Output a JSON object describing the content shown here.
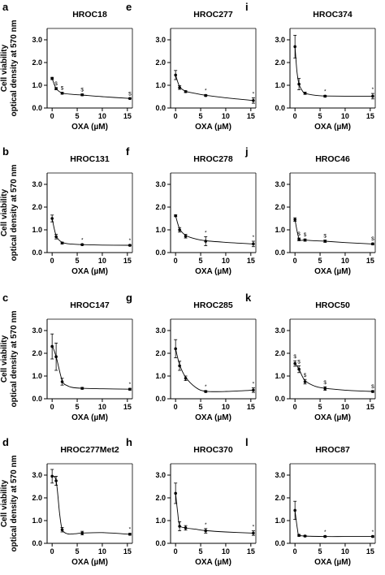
{
  "ylabel_lines": [
    "Cell viability",
    "optical density at 570 nm"
  ],
  "chart_data": [
    {
      "type": "line",
      "letter": "a",
      "title": "HROC18",
      "xlabel": "OXA (µM)",
      "ylabel": "Cell viability optical density at 570 nm",
      "xlim": [
        -1,
        16
      ],
      "ylim": [
        0,
        3.5
      ],
      "xticks": [
        0,
        5,
        10,
        15
      ],
      "yticks": [
        0,
        1,
        2,
        3
      ],
      "yticklabels": [
        "0.0",
        "1.0",
        "2.0",
        "3.0"
      ],
      "points": [
        {
          "x": 0,
          "y": 1.3,
          "err": 0.05,
          "ann": ""
        },
        {
          "x": 0.8,
          "y": 0.85,
          "err": 0.05,
          "ann": "$"
        },
        {
          "x": 2,
          "y": 0.65,
          "err": 0.04,
          "ann": "$"
        },
        {
          "x": 6,
          "y": 0.58,
          "err": 0.04,
          "ann": "$"
        },
        {
          "x": 15.5,
          "y": 0.42,
          "err": 0.03,
          "ann": "$"
        }
      ],
      "curve": [
        [
          0,
          1.3
        ],
        [
          0.8,
          0.86
        ],
        [
          2,
          0.66
        ],
        [
          4,
          0.6
        ],
        [
          6,
          0.57
        ],
        [
          10,
          0.5
        ],
        [
          15.5,
          0.42
        ]
      ]
    },
    {
      "type": "line",
      "letter": "e",
      "title": "HROC277",
      "xlabel": "OXA (µM)",
      "ylabel": "",
      "xlim": [
        -1,
        16
      ],
      "ylim": [
        0,
        3.5
      ],
      "xticks": [
        0,
        5,
        10,
        15
      ],
      "yticks": [
        0,
        1,
        2,
        3
      ],
      "yticklabels": [
        "0.0",
        "1.0",
        "2.0",
        "3.0"
      ],
      "points": [
        {
          "x": 0,
          "y": 1.45,
          "err": 0.2,
          "ann": ""
        },
        {
          "x": 0.8,
          "y": 0.9,
          "err": 0.08,
          "ann": ""
        },
        {
          "x": 2,
          "y": 0.72,
          "err": 0.04,
          "ann": ""
        },
        {
          "x": 6,
          "y": 0.55,
          "err": 0.04,
          "ann": "*"
        },
        {
          "x": 15.5,
          "y": 0.33,
          "err": 0.12,
          "ann": "*"
        }
      ],
      "curve": [
        [
          0,
          1.45
        ],
        [
          0.8,
          0.95
        ],
        [
          2,
          0.74
        ],
        [
          4,
          0.64
        ],
        [
          6,
          0.56
        ],
        [
          10,
          0.45
        ],
        [
          15.5,
          0.33
        ]
      ]
    },
    {
      "type": "line",
      "letter": "i",
      "title": "HROC374",
      "xlabel": "OXA (µM)",
      "ylabel": "",
      "xlim": [
        -1,
        16
      ],
      "ylim": [
        0,
        3.5
      ],
      "xticks": [
        0,
        5,
        10,
        15
      ],
      "yticks": [
        0,
        1,
        2,
        3
      ],
      "yticklabels": [
        "0.0",
        "1.0",
        "2.0",
        "3.0"
      ],
      "points": [
        {
          "x": 0,
          "y": 2.7,
          "err": 0.5,
          "ann": ""
        },
        {
          "x": 0.8,
          "y": 1.05,
          "err": 0.25,
          "ann": ""
        },
        {
          "x": 2,
          "y": 0.65,
          "err": 0.05,
          "ann": ""
        },
        {
          "x": 6,
          "y": 0.52,
          "err": 0.04,
          "ann": "*"
        },
        {
          "x": 15.5,
          "y": 0.52,
          "err": 0.12,
          "ann": "*"
        }
      ],
      "curve": [
        [
          0,
          2.7
        ],
        [
          0.4,
          1.6
        ],
        [
          0.8,
          1.05
        ],
        [
          1.5,
          0.75
        ],
        [
          2,
          0.65
        ],
        [
          4,
          0.56
        ],
        [
          6,
          0.53
        ],
        [
          10,
          0.52
        ],
        [
          15.5,
          0.52
        ]
      ]
    },
    {
      "type": "line",
      "letter": "b",
      "title": "HROC131",
      "xlabel": "OXA (µM)",
      "ylabel": "Cell viability optical density at 570 nm",
      "xlim": [
        -1,
        16
      ],
      "ylim": [
        0,
        3.5
      ],
      "xticks": [
        0,
        5,
        10,
        15
      ],
      "yticks": [
        0,
        1,
        2,
        3
      ],
      "yticklabels": [
        "0.0",
        "1.0",
        "2.0",
        "3.0"
      ],
      "points": [
        {
          "x": 0,
          "y": 1.5,
          "err": 0.15,
          "ann": ""
        },
        {
          "x": 0.8,
          "y": 0.7,
          "err": 0.1,
          "ann": ""
        },
        {
          "x": 2,
          "y": 0.42,
          "err": 0.04,
          "ann": ""
        },
        {
          "x": 6,
          "y": 0.35,
          "err": 0.03,
          "ann": "*"
        },
        {
          "x": 15.5,
          "y": 0.32,
          "err": 0.03,
          "ann": "*"
        }
      ],
      "curve": [
        [
          0,
          1.5
        ],
        [
          0.8,
          0.75
        ],
        [
          2,
          0.45
        ],
        [
          4,
          0.37
        ],
        [
          6,
          0.35
        ],
        [
          10,
          0.33
        ],
        [
          15.5,
          0.32
        ]
      ]
    },
    {
      "type": "line",
      "letter": "f",
      "title": "HROC278",
      "xlabel": "OXA (µM)",
      "ylabel": "",
      "xlim": [
        -1,
        16
      ],
      "ylim": [
        0,
        3.5
      ],
      "xticks": [
        0,
        5,
        10,
        15
      ],
      "yticks": [
        0,
        1,
        2,
        3
      ],
      "yticklabels": [
        "0.0",
        "1.0",
        "2.0",
        "3.0"
      ],
      "points": [
        {
          "x": 0,
          "y": 1.62,
          "err": 0.04,
          "ann": ""
        },
        {
          "x": 0.8,
          "y": 1.0,
          "err": 0.1,
          "ann": ""
        },
        {
          "x": 2,
          "y": 0.72,
          "err": 0.08,
          "ann": ""
        },
        {
          "x": 6,
          "y": 0.5,
          "err": 0.2,
          "ann": "*"
        },
        {
          "x": 15.5,
          "y": 0.38,
          "err": 0.12,
          "ann": "*"
        }
      ],
      "curve": [
        [
          0,
          1.62
        ],
        [
          0.8,
          1.05
        ],
        [
          2,
          0.76
        ],
        [
          4,
          0.6
        ],
        [
          6,
          0.52
        ],
        [
          10,
          0.45
        ],
        [
          15.5,
          0.38
        ]
      ]
    },
    {
      "type": "line",
      "letter": "j",
      "title": "HROC46",
      "xlabel": "OXA (µM)",
      "ylabel": "",
      "xlim": [
        -1,
        16
      ],
      "ylim": [
        0,
        3.5
      ],
      "xticks": [
        0,
        5,
        10,
        15
      ],
      "yticks": [
        0,
        1,
        2,
        3
      ],
      "yticklabels": [
        "0.0",
        "1.0",
        "2.0",
        "3.0"
      ],
      "points": [
        {
          "x": 0,
          "y": 1.45,
          "err": 0.08,
          "ann": ""
        },
        {
          "x": 0.8,
          "y": 0.58,
          "err": 0.06,
          "ann": "$"
        },
        {
          "x": 2,
          "y": 0.55,
          "err": 0.05,
          "ann": "$"
        },
        {
          "x": 6,
          "y": 0.5,
          "err": 0.05,
          "ann": "$"
        },
        {
          "x": 15.5,
          "y": 0.38,
          "err": 0.04,
          "ann": "$"
        }
      ],
      "curve": [
        [
          0,
          1.45
        ],
        [
          0.8,
          0.62
        ],
        [
          2,
          0.55
        ],
        [
          4,
          0.52
        ],
        [
          6,
          0.5
        ],
        [
          10,
          0.44
        ],
        [
          15.5,
          0.38
        ]
      ]
    },
    {
      "type": "line",
      "letter": "c",
      "title": "HROC147",
      "xlabel": "OXA (µM)",
      "ylabel": "Cell viability optical density at 570 nm",
      "xlim": [
        -1,
        16
      ],
      "ylim": [
        0,
        3.5
      ],
      "xticks": [
        0,
        5,
        10,
        15
      ],
      "yticks": [
        0,
        1,
        2,
        3
      ],
      "yticklabels": [
        "0.0",
        "1.0",
        "2.0",
        "3.0"
      ],
      "points": [
        {
          "x": 0,
          "y": 2.3,
          "err": 0.55,
          "ann": ""
        },
        {
          "x": 0.8,
          "y": 1.85,
          "err": 0.6,
          "ann": ""
        },
        {
          "x": 2,
          "y": 0.75,
          "err": 0.15,
          "ann": ""
        },
        {
          "x": 6,
          "y": 0.46,
          "err": 0.04,
          "ann": ""
        },
        {
          "x": 15.5,
          "y": 0.42,
          "err": 0.04,
          "ann": "*"
        }
      ],
      "curve": [
        [
          0,
          2.35
        ],
        [
          0.8,
          1.85
        ],
        [
          2,
          0.8
        ],
        [
          3,
          0.58
        ],
        [
          4,
          0.5
        ],
        [
          6,
          0.46
        ],
        [
          10,
          0.44
        ],
        [
          15.5,
          0.42
        ]
      ]
    },
    {
      "type": "line",
      "letter": "g",
      "title": "HROC285",
      "xlabel": "OXA (µM)",
      "ylabel": "",
      "xlim": [
        -1,
        16
      ],
      "ylim": [
        0,
        3.5
      ],
      "xticks": [
        0,
        5,
        10,
        15
      ],
      "yticks": [
        0,
        1,
        2,
        3
      ],
      "yticklabels": [
        "0.0",
        "1.0",
        "2.0",
        "3.0"
      ],
      "points": [
        {
          "x": 0,
          "y": 2.2,
          "err": 0.4,
          "ann": ""
        },
        {
          "x": 0.8,
          "y": 1.45,
          "err": 0.2,
          "ann": ""
        },
        {
          "x": 2,
          "y": 0.9,
          "err": 0.1,
          "ann": ""
        },
        {
          "x": 6,
          "y": 0.32,
          "err": 0.04,
          "ann": "*"
        },
        {
          "x": 15.5,
          "y": 0.38,
          "err": 0.1,
          "ann": "*"
        }
      ],
      "curve": [
        [
          0,
          2.2
        ],
        [
          0.8,
          1.5
        ],
        [
          2,
          0.95
        ],
        [
          4,
          0.5
        ],
        [
          6,
          0.33
        ],
        [
          10,
          0.32
        ],
        [
          15.5,
          0.38
        ]
      ]
    },
    {
      "type": "line",
      "letter": "k",
      "title": "HROC50",
      "xlabel": "OXA (µM)",
      "ylabel": "",
      "xlim": [
        -1,
        16
      ],
      "ylim": [
        0,
        3.5
      ],
      "xticks": [
        0,
        5,
        10,
        15
      ],
      "yticks": [
        0,
        1,
        2,
        3
      ],
      "yticklabels": [
        "0.0",
        "1.0",
        "2.0",
        "3.0"
      ],
      "points": [
        {
          "x": 0,
          "y": 1.55,
          "err": 0.12,
          "ann": "$"
        },
        {
          "x": 0.8,
          "y": 1.3,
          "err": 0.15,
          "ann": "$"
        },
        {
          "x": 2,
          "y": 0.75,
          "err": 0.1,
          "ann": "$"
        },
        {
          "x": 6,
          "y": 0.45,
          "err": 0.08,
          "ann": "$"
        },
        {
          "x": 15.5,
          "y": 0.32,
          "err": 0.04,
          "ann": "$"
        }
      ],
      "curve": [
        [
          0,
          1.58
        ],
        [
          0.8,
          1.3
        ],
        [
          2,
          0.8
        ],
        [
          4,
          0.55
        ],
        [
          6,
          0.46
        ],
        [
          10,
          0.38
        ],
        [
          15.5,
          0.32
        ]
      ]
    },
    {
      "type": "line",
      "letter": "d",
      "title": "HROC277Met2",
      "xlabel": "OXA (µM)",
      "ylabel": "Cell viability optical density at 570 nm",
      "xlim": [
        -1,
        16
      ],
      "ylim": [
        0,
        3.5
      ],
      "xticks": [
        0,
        5,
        10,
        15
      ],
      "yticks": [
        0,
        1,
        2,
        3
      ],
      "yticklabels": [
        "0.0",
        "1.0",
        "2.0",
        "3.0"
      ],
      "points": [
        {
          "x": 0,
          "y": 2.95,
          "err": 0.3,
          "ann": ""
        },
        {
          "x": 0.8,
          "y": 2.75,
          "err": 0.2,
          "ann": ""
        },
        {
          "x": 2,
          "y": 0.6,
          "err": 0.1,
          "ann": ""
        },
        {
          "x": 6,
          "y": 0.45,
          "err": 0.08,
          "ann": ""
        },
        {
          "x": 15.5,
          "y": 0.4,
          "err": 0.04,
          "ann": "*"
        }
      ],
      "curve": [
        [
          0,
          2.95
        ],
        [
          0.8,
          2.75
        ],
        [
          1.5,
          1.3
        ],
        [
          2,
          0.62
        ],
        [
          3,
          0.42
        ],
        [
          4.5,
          0.42
        ],
        [
          6,
          0.45
        ],
        [
          10,
          0.47
        ],
        [
          15.5,
          0.4
        ]
      ]
    },
    {
      "type": "line",
      "letter": "h",
      "title": "HROC370",
      "xlabel": "OXA (µM)",
      "ylabel": "",
      "xlim": [
        -1,
        16
      ],
      "ylim": [
        0,
        3.5
      ],
      "xticks": [
        0,
        5,
        10,
        15
      ],
      "yticks": [
        0,
        1,
        2,
        3
      ],
      "yticklabels": [
        "0.0",
        "1.0",
        "2.0",
        "3.0"
      ],
      "points": [
        {
          "x": 0,
          "y": 2.2,
          "err": 0.45,
          "ann": ""
        },
        {
          "x": 0.8,
          "y": 0.75,
          "err": 0.2,
          "ann": ""
        },
        {
          "x": 2,
          "y": 0.68,
          "err": 0.1,
          "ann": ""
        },
        {
          "x": 6,
          "y": 0.55,
          "err": 0.1,
          "ann": "*"
        },
        {
          "x": 15.5,
          "y": 0.45,
          "err": 0.1,
          "ann": "*"
        }
      ],
      "curve": [
        [
          0,
          2.2
        ],
        [
          0.4,
          1.4
        ],
        [
          0.8,
          0.8
        ],
        [
          2,
          0.68
        ],
        [
          4,
          0.62
        ],
        [
          6,
          0.56
        ],
        [
          10,
          0.5
        ],
        [
          15.5,
          0.45
        ]
      ]
    },
    {
      "type": "line",
      "letter": "l",
      "title": "HROC87",
      "xlabel": "OXA (µM)",
      "ylabel": "",
      "xlim": [
        -1,
        16
      ],
      "ylim": [
        0,
        3.5
      ],
      "xticks": [
        0,
        5,
        10,
        15
      ],
      "yticks": [
        0,
        1,
        2,
        3
      ],
      "yticklabels": [
        "0.0",
        "1.0",
        "2.0",
        "3.0"
      ],
      "points": [
        {
          "x": 0,
          "y": 1.45,
          "err": 0.4,
          "ann": ""
        },
        {
          "x": 0.8,
          "y": 0.35,
          "err": 0.04,
          "ann": ""
        },
        {
          "x": 2,
          "y": 0.32,
          "err": 0.03,
          "ann": ""
        },
        {
          "x": 6,
          "y": 0.3,
          "err": 0.03,
          "ann": "*"
        },
        {
          "x": 15.5,
          "y": 0.3,
          "err": 0.03,
          "ann": "*"
        }
      ],
      "curve": [
        [
          0,
          1.45
        ],
        [
          0.5,
          0.6
        ],
        [
          0.8,
          0.37
        ],
        [
          2,
          0.32
        ],
        [
          6,
          0.3
        ],
        [
          10,
          0.3
        ],
        [
          15.5,
          0.3
        ]
      ]
    }
  ]
}
